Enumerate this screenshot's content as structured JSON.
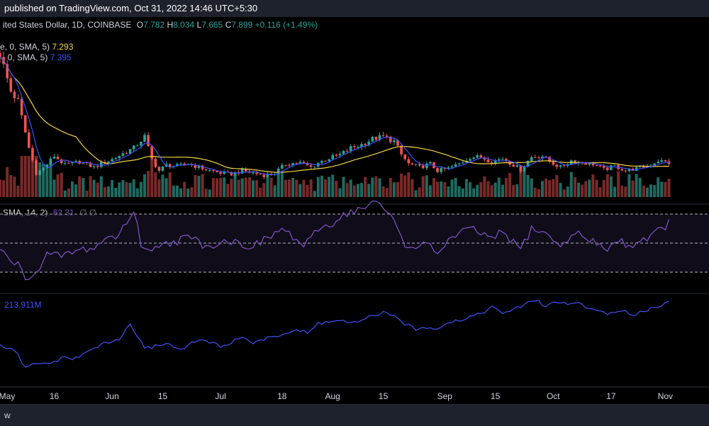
{
  "header": {
    "published": "published on TradingView.com, Oct 31, 2022 14:46 UTC+5:30"
  },
  "main_legend": {
    "symbol": "ited States Dollar, 1D, COINBASE",
    "o_label": "O",
    "o_value": "7.782",
    "h_label": "H",
    "h_value": "8.034",
    "l_label": "L",
    "l_value": "7.665",
    "c_label": "C",
    "c_value": "7.899",
    "change": "+0.116 (+1.49%)"
  },
  "ma_legend": [
    {
      "label": "e, 0, SMA, 5)",
      "value": "7.293",
      "color": "#f5d547"
    },
    {
      "label": ", 0, SMA, 5)",
      "value": "7.395",
      "color": "#3f51f5"
    }
  ],
  "rsi_legend": {
    "label": "SMA, 14, 2)",
    "value": "62.31",
    "extra": "∅  ∅"
  },
  "obv_legend": {
    "value": "213.911M"
  },
  "x_axis": {
    "ticks": [
      {
        "label": "May",
        "i": 0
      },
      {
        "label": "16",
        "i": 15
      },
      {
        "label": "Jun",
        "i": 31
      },
      {
        "label": "15",
        "i": 45
      },
      {
        "label": "Jul",
        "i": 61
      },
      {
        "label": "18",
        "i": 78
      },
      {
        "label": "Aug",
        "i": 92
      },
      {
        "label": "15",
        "i": 106
      },
      {
        "label": "Sep",
        "i": 123
      },
      {
        "label": "15",
        "i": 137
      },
      {
        "label": "Oct",
        "i": 153
      },
      {
        "label": "17",
        "i": 169
      },
      {
        "label": "Nov",
        "i": 184
      }
    ]
  },
  "bottom_bar": {
    "text": "w"
  },
  "chart_data": {
    "type": "candlestick",
    "colors": {
      "up": "#26a69a",
      "down": "#ef5350",
      "ma_fast": "#3f51f5",
      "ma_slow": "#f5d547",
      "rsi": "#7e57c2",
      "obv": "#3f51f5"
    },
    "price_anchors": [
      [
        0,
        17.5
      ],
      [
        3,
        14.2
      ],
      [
        5,
        13.3
      ],
      [
        8,
        9.2
      ],
      [
        10,
        7.0
      ],
      [
        12,
        7.4
      ],
      [
        15,
        8.5
      ],
      [
        18,
        7.7
      ],
      [
        22,
        8.0
      ],
      [
        26,
        7.5
      ],
      [
        28,
        7.8
      ],
      [
        31,
        8.2
      ],
      [
        34,
        8.7
      ],
      [
        37,
        9.2
      ],
      [
        40,
        10.2
      ],
      [
        42,
        8.2
      ],
      [
        44,
        7.2
      ],
      [
        46,
        7.7
      ],
      [
        49,
        7.6
      ],
      [
        52,
        7.8
      ],
      [
        55,
        7.5
      ],
      [
        58,
        7.2
      ],
      [
        61,
        7.0
      ],
      [
        64,
        6.9
      ],
      [
        67,
        7.2
      ],
      [
        70,
        7.0
      ],
      [
        73,
        6.8
      ],
      [
        76,
        7.0
      ],
      [
        79,
        7.8
      ],
      [
        83,
        7.9
      ],
      [
        86,
        7.5
      ],
      [
        88,
        7.9
      ],
      [
        91,
        8.3
      ],
      [
        94,
        8.6
      ],
      [
        97,
        9.2
      ],
      [
        100,
        9.5
      ],
      [
        103,
        10.0
      ],
      [
        106,
        10.2
      ],
      [
        109,
        9.8
      ],
      [
        111,
        8.6
      ],
      [
        113,
        7.8
      ],
      [
        116,
        7.5
      ],
      [
        119,
        7.8
      ],
      [
        121,
        7.2
      ],
      [
        124,
        7.4
      ],
      [
        127,
        7.8
      ],
      [
        130,
        8.4
      ],
      [
        133,
        8.4
      ],
      [
        136,
        8.0
      ],
      [
        139,
        8.3
      ],
      [
        142,
        7.7
      ],
      [
        144,
        7.3
      ],
      [
        147,
        8.4
      ],
      [
        150,
        8.5
      ],
      [
        152,
        8.0
      ],
      [
        155,
        7.5
      ],
      [
        158,
        8.1
      ],
      [
        161,
        7.9
      ],
      [
        164,
        7.8
      ],
      [
        167,
        7.3
      ],
      [
        170,
        7.6
      ],
      [
        173,
        7.2
      ],
      [
        176,
        7.4
      ],
      [
        179,
        7.6
      ],
      [
        182,
        8.1
      ],
      [
        185,
        7.9
      ]
    ],
    "rsi_anchors": [
      [
        0,
        45
      ],
      [
        3,
        38
      ],
      [
        5,
        35
      ],
      [
        7,
        25
      ],
      [
        9,
        30
      ],
      [
        11,
        32
      ],
      [
        13,
        42
      ],
      [
        15,
        41
      ],
      [
        18,
        42
      ],
      [
        22,
        45
      ],
      [
        26,
        47
      ],
      [
        28,
        50
      ],
      [
        30,
        55
      ],
      [
        32,
        53
      ],
      [
        35,
        65
      ],
      [
        37,
        72
      ],
      [
        39,
        50
      ],
      [
        42,
        43
      ],
      [
        45,
        52
      ],
      [
        48,
        50
      ],
      [
        51,
        54
      ],
      [
        54,
        52
      ],
      [
        57,
        48
      ],
      [
        60,
        50
      ],
      [
        63,
        52
      ],
      [
        66,
        50
      ],
      [
        69,
        48
      ],
      [
        72,
        50
      ],
      [
        75,
        55
      ],
      [
        78,
        60
      ],
      [
        81,
        54
      ],
      [
        84,
        48
      ],
      [
        86,
        52
      ],
      [
        88,
        60
      ],
      [
        91,
        62
      ],
      [
        94,
        68
      ],
      [
        97,
        72
      ],
      [
        100,
        73
      ],
      [
        103,
        78
      ],
      [
        106,
        74
      ],
      [
        109,
        66
      ],
      [
        111,
        55
      ],
      [
        113,
        45
      ],
      [
        116,
        50
      ],
      [
        119,
        47
      ],
      [
        121,
        43
      ],
      [
        124,
        52
      ],
      [
        127,
        56
      ],
      [
        130,
        60
      ],
      [
        133,
        57
      ],
      [
        136,
        52
      ],
      [
        139,
        58
      ],
      [
        142,
        50
      ],
      [
        144,
        46
      ],
      [
        147,
        60
      ],
      [
        150,
        58
      ],
      [
        153,
        52
      ],
      [
        156,
        48
      ],
      [
        159,
        59
      ],
      [
        162,
        52
      ],
      [
        165,
        50
      ],
      [
        168,
        46
      ],
      [
        171,
        52
      ],
      [
        174,
        48
      ],
      [
        177,
        52
      ],
      [
        180,
        55
      ],
      [
        183,
        60
      ],
      [
        185,
        64
      ]
    ],
    "obv_anchors": [
      [
        0,
        -20
      ],
      [
        3,
        -25
      ],
      [
        5,
        -35
      ],
      [
        7,
        -55
      ],
      [
        9,
        -50
      ],
      [
        12,
        -48
      ],
      [
        15,
        -45
      ],
      [
        18,
        -38
      ],
      [
        21,
        -40
      ],
      [
        24,
        -30
      ],
      [
        27,
        -20
      ],
      [
        30,
        -15
      ],
      [
        33,
        -10
      ],
      [
        36,
        15
      ],
      [
        38,
        -5
      ],
      [
        40,
        -25
      ],
      [
        43,
        -20
      ],
      [
        46,
        -15
      ],
      [
        49,
        -25
      ],
      [
        52,
        -20
      ],
      [
        55,
        -10
      ],
      [
        58,
        -15
      ],
      [
        61,
        -20
      ],
      [
        64,
        -15
      ],
      [
        67,
        -5
      ],
      [
        70,
        -15
      ],
      [
        73,
        -10
      ],
      [
        76,
        -5
      ],
      [
        79,
        0
      ],
      [
        82,
        5
      ],
      [
        85,
        0
      ],
      [
        88,
        15
      ],
      [
        91,
        18
      ],
      [
        94,
        20
      ],
      [
        97,
        15
      ],
      [
        100,
        18
      ],
      [
        103,
        28
      ],
      [
        106,
        32
      ],
      [
        109,
        25
      ],
      [
        112,
        15
      ],
      [
        115,
        5
      ],
      [
        118,
        10
      ],
      [
        121,
        8
      ],
      [
        124,
        18
      ],
      [
        127,
        20
      ],
      [
        130,
        26
      ],
      [
        133,
        32
      ],
      [
        136,
        40
      ],
      [
        139,
        32
      ],
      [
        142,
        36
      ],
      [
        145,
        45
      ],
      [
        148,
        52
      ],
      [
        151,
        42
      ],
      [
        154,
        50
      ],
      [
        157,
        45
      ],
      [
        160,
        48
      ],
      [
        163,
        38
      ],
      [
        166,
        35
      ],
      [
        169,
        30
      ],
      [
        172,
        34
      ],
      [
        175,
        30
      ],
      [
        178,
        35
      ],
      [
        181,
        40
      ],
      [
        184,
        48
      ]
    ]
  }
}
